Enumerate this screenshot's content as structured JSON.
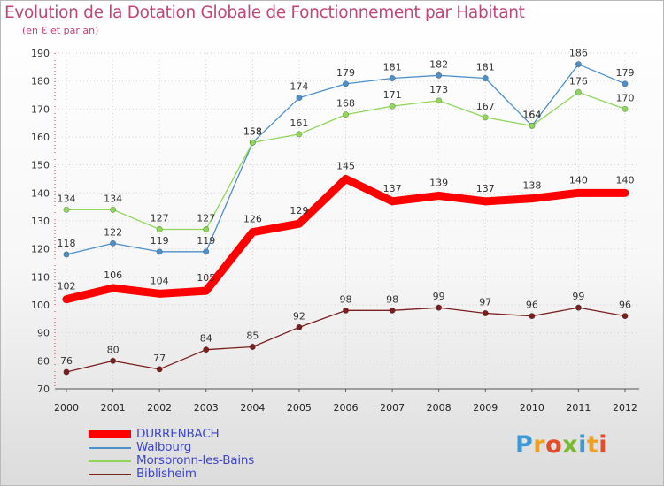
{
  "title": "Evolution de la Dotation Globale de Fonctionnement par Habitant",
  "subtitle": "(en € et par an)",
  "logo": {
    "text": "Proxiti",
    "letters": [
      {
        "ch": "P",
        "color": "#3a9ad9"
      },
      {
        "ch": "r",
        "color": "#f0a020"
      },
      {
        "ch": "o",
        "color": "#e34b2a"
      },
      {
        "ch": "x",
        "color": "#7cb82f"
      },
      {
        "ch": "i",
        "color": "#3a9ad9"
      },
      {
        "ch": "t",
        "color": "#f0a020"
      },
      {
        "ch": "i",
        "color": "#e34b2a"
      }
    ]
  },
  "chart_data": {
    "type": "line",
    "x": [
      "2000",
      "2001",
      "2002",
      "2003",
      "2004",
      "2005",
      "2006",
      "2007",
      "2008",
      "2009",
      "2010",
      "2011",
      "2012"
    ],
    "ylim": [
      70,
      190
    ],
    "yticks": [
      70,
      80,
      90,
      100,
      110,
      120,
      130,
      140,
      150,
      160,
      170,
      180,
      190
    ],
    "grid": true,
    "legend_position": "bottom-left",
    "series": [
      {
        "name": "DURRENBACH",
        "color": "#ff0000",
        "emphasis": true,
        "values": [
          102,
          106,
          104,
          105,
          126,
          129,
          145,
          137,
          139,
          137,
          138,
          140,
          140
        ]
      },
      {
        "name": "Walbourg",
        "color": "#4f8fc9",
        "emphasis": false,
        "values": [
          118,
          122,
          119,
          119,
          158,
          174,
          179,
          181,
          182,
          181,
          164,
          186,
          179
        ]
      },
      {
        "name": "Morsbronn-les-Bains",
        "color": "#8fd65a",
        "emphasis": false,
        "values": [
          134,
          134,
          127,
          127,
          158,
          161,
          168,
          171,
          173,
          167,
          164,
          176,
          170
        ]
      },
      {
        "name": "Biblisheim",
        "color": "#7a1f1f",
        "emphasis": false,
        "values": [
          76,
          80,
          77,
          84,
          85,
          92,
          98,
          98,
          99,
          97,
          96,
          99,
          96
        ]
      }
    ]
  }
}
